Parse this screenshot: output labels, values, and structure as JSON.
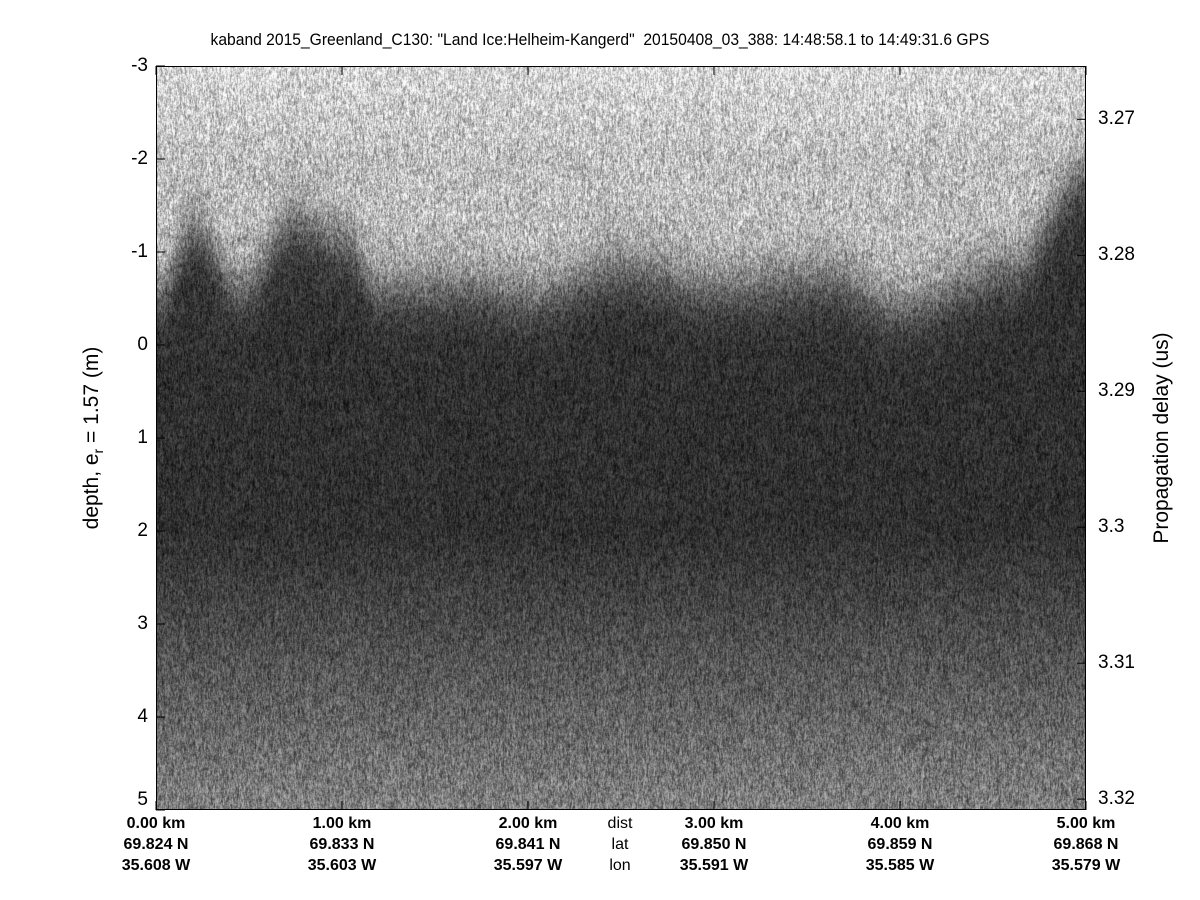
{
  "chart_data": {
    "type": "heatmap",
    "title": "kaband 2015_Greenland_C130: \"Land Ice:Helheim-Kangerd\"  20150408_03_388: 14:48:58.1 to 14:49:31.6 GPS",
    "ylabel": "depth, e",
    "ylabel_sub": "r",
    "ylabel_rest": " = 1.57 (m)",
    "y2label": "Propagation delay (us)",
    "ylim": [
      -3,
      5
    ],
    "y_ticks": [
      "-3",
      "-2",
      "-1",
      "0",
      "1",
      "2",
      "3",
      "4",
      "5"
    ],
    "y2lim": [
      3.26608,
      3.3208
    ],
    "y2_ticks": [
      "3.27",
      "3.28",
      "3.29",
      "3.3",
      "3.31",
      "3.32"
    ],
    "y2_tick_values": [
      3.27,
      3.28,
      3.29,
      3.3,
      3.31,
      3.32
    ],
    "colormap": "gray",
    "x_rows": {
      "labels": [
        "dist",
        "lat",
        "lon"
      ],
      "ticks": [
        {
          "dist": "0.00 km",
          "lat": "69.824 N",
          "lon": "35.608 W"
        },
        {
          "dist": "1.00 km",
          "lat": "69.833 N",
          "lon": "35.603 W"
        },
        {
          "dist": "2.00 km",
          "lat": "69.841 N",
          "lon": "35.597 W"
        },
        {
          "dist": "3.00 km",
          "lat": "69.850 N",
          "lon": "35.591 W"
        },
        {
          "dist": "4.00 km",
          "lat": "69.859 N",
          "lon": "35.585 W"
        },
        {
          "dist": "5.00 km",
          "lat": "69.868 N",
          "lon": "35.579 W"
        }
      ],
      "tick_values_km": [
        0,
        1,
        2,
        3,
        4,
        5
      ]
    },
    "xlim_km": [
      0,
      5
    ],
    "surface_profile": {
      "distance_km": [
        0,
        0.2,
        0.45,
        0.75,
        1.0,
        1.2,
        1.7,
        2.0,
        2.5,
        3.0,
        3.6,
        4.0,
        4.6,
        5.0
      ],
      "depth_m": [
        -0.5,
        -1.2,
        -0.6,
        -1.3,
        -1.1,
        -0.6,
        -0.6,
        -0.5,
        -0.8,
        -0.6,
        -0.7,
        -0.4,
        -0.8,
        -1.8
      ]
    }
  }
}
